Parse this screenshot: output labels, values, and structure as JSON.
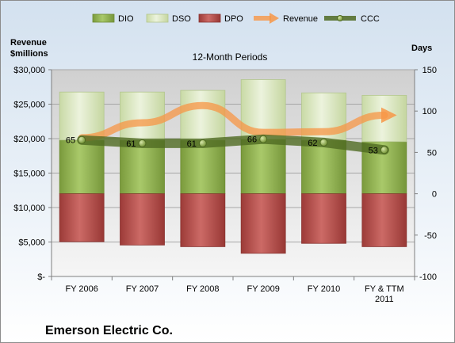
{
  "chart_data": {
    "type": "bar",
    "title": "12-Month Periods",
    "company": "Emerson Electric Co.",
    "categories": [
      [
        "FY 2006"
      ],
      [
        "FY 2007"
      ],
      [
        "FY 2008"
      ],
      [
        "FY 2009"
      ],
      [
        "FY 2010"
      ],
      [
        "FY & TTM",
        "2011"
      ]
    ],
    "left_axis": {
      "label": [
        "Revenue",
        "$millions"
      ],
      "range": [
        0,
        30000
      ],
      "ticks": [
        0,
        5000,
        10000,
        15000,
        20000,
        25000,
        30000
      ],
      "tick_labels": [
        "$-",
        "$5,000",
        "$10,000",
        "$15,000",
        "$20,000",
        "$25,000",
        "$30,000"
      ]
    },
    "right_axis": {
      "label": "Days",
      "range": [
        -100,
        150
      ],
      "ticks": [
        -100,
        -50,
        0,
        50,
        100,
        150
      ],
      "tick_labels": [
        "-100",
        "-50",
        "0",
        "50",
        "100",
        "150"
      ]
    },
    "legend_position": "top",
    "series": [
      {
        "name": "DIO",
        "type": "bar",
        "axis": "right",
        "color": "#8fb04f",
        "values": [
          65,
          65,
          65,
          66,
          65,
          63
        ]
      },
      {
        "name": "DSO",
        "type": "bar",
        "axis": "right",
        "color": "#d7e4bd",
        "values": [
          58,
          58,
          60,
          72,
          57,
          56
        ]
      },
      {
        "name": "DPO",
        "type": "bar",
        "axis": "right",
        "color": "#c0504d",
        "values": [
          -58,
          -62,
          -64,
          -72,
          -60,
          -64
        ]
      },
      {
        "name": "Revenue",
        "type": "line",
        "axis": "left",
        "color": "#f79646",
        "values": [
          20130,
          22300,
          24800,
          20900,
          21000,
          23400
        ]
      },
      {
        "name": "CCC",
        "type": "line",
        "axis": "right",
        "color": "#5d7a2c",
        "values": [
          65,
          61,
          61,
          66,
          62,
          53
        ],
        "data_labels": [
          "65",
          "61",
          "61",
          "66",
          "62",
          "53"
        ]
      }
    ]
  }
}
